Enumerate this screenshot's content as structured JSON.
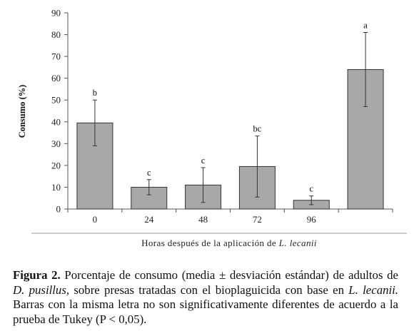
{
  "chart_data": {
    "type": "bar",
    "categories": [
      "0",
      "24",
      "48",
      "72",
      "96",
      ""
    ],
    "values": [
      39.5,
      10,
      11,
      19.5,
      4,
      64
    ],
    "error_bars": [
      10.5,
      3.5,
      8,
      14,
      2,
      17
    ],
    "letters": [
      "b",
      "c",
      "c",
      "bc",
      "c",
      "a"
    ],
    "ylabel": "Consumo (%)",
    "xlabel_prefix": "Horas después de la aplicación de ",
    "xlabel_species": "L. lecanii",
    "ylim": [
      0,
      90
    ],
    "yticks": [
      0,
      10,
      20,
      30,
      40,
      50,
      60,
      70,
      80,
      90
    ],
    "bar_color": "#a8a8a8",
    "grid": false
  },
  "caption": {
    "label": "Figura 2.",
    "p1": " Porcentaje de consumo (media ± desviación estándar) de adultos de ",
    "sp1": "D. pusillus,",
    "p2": " sobre presas tratadas con el bioplaguicida con base en ",
    "sp2": "L. lecanii.",
    "p3": " Barras con la misma letra no son significativamente diferentes de acuerdo a la prueba de Tukey (P < 0,05)."
  }
}
